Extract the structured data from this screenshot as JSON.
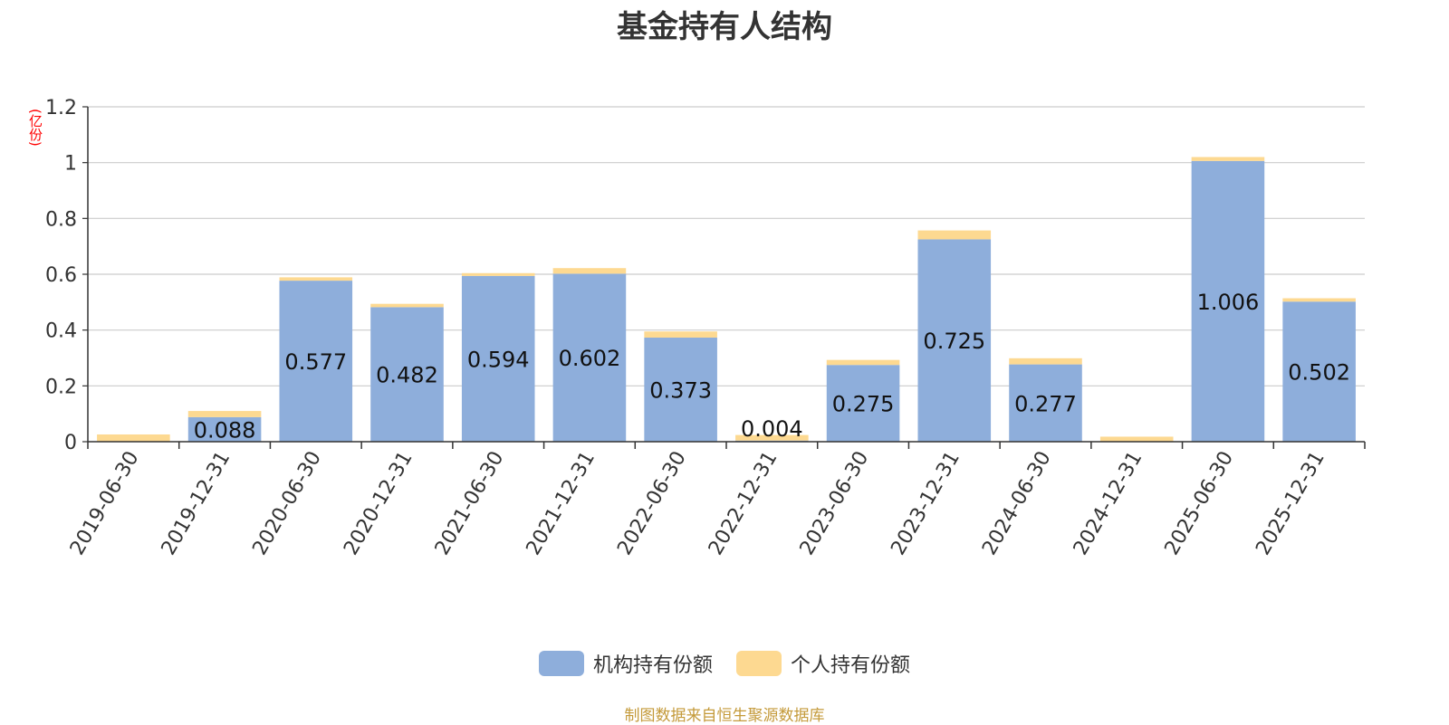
{
  "title": "基金持有人结构",
  "unit_label": "(亿份)",
  "footer": "制图数据来自恒生聚源数据库",
  "colors": {
    "institutional": "#8eaedb",
    "individual": "#fdd991",
    "axis": "#333333",
    "grid": "#cccccc",
    "unit": "#ff0000",
    "footer": "#c49a3a"
  },
  "chart_data": {
    "type": "bar",
    "stacked": true,
    "categories": [
      "2019-06-30",
      "2019-12-31",
      "2020-06-30",
      "2020-12-31",
      "2021-06-30",
      "2021-12-31",
      "2022-06-30",
      "2022-12-31",
      "2023-06-30",
      "2023-12-31",
      "2024-06-30",
      "2024-12-31",
      "2025-06-30",
      "2025-12-31"
    ],
    "series": [
      {
        "name": "机构持有份额",
        "color": "#8eaedb",
        "values": [
          0,
          0.088,
          0.577,
          0.482,
          0.594,
          0.602,
          0.373,
          0.004,
          0.275,
          0.725,
          0.277,
          0,
          1.006,
          0.502
        ],
        "labels": [
          "",
          "0.088",
          "0.577",
          "0.482",
          "0.594",
          "0.602",
          "0.373",
          "0.004",
          "0.275",
          "0.725",
          "0.277",
          "",
          "1.006",
          "0.502"
        ]
      },
      {
        "name": "个人持有份额",
        "color": "#fdd991",
        "values": [
          0.026,
          0.022,
          0.012,
          0.012,
          0.01,
          0.02,
          0.022,
          0.02,
          0.018,
          0.032,
          0.022,
          0.018,
          0.014,
          0.012
        ]
      }
    ],
    "ylim": [
      0,
      1.2
    ],
    "yticks": [
      "0",
      "0.2",
      "0.4",
      "0.6",
      "0.8",
      "1",
      "1.2"
    ],
    "grid": true,
    "legend": "bottom-center"
  }
}
